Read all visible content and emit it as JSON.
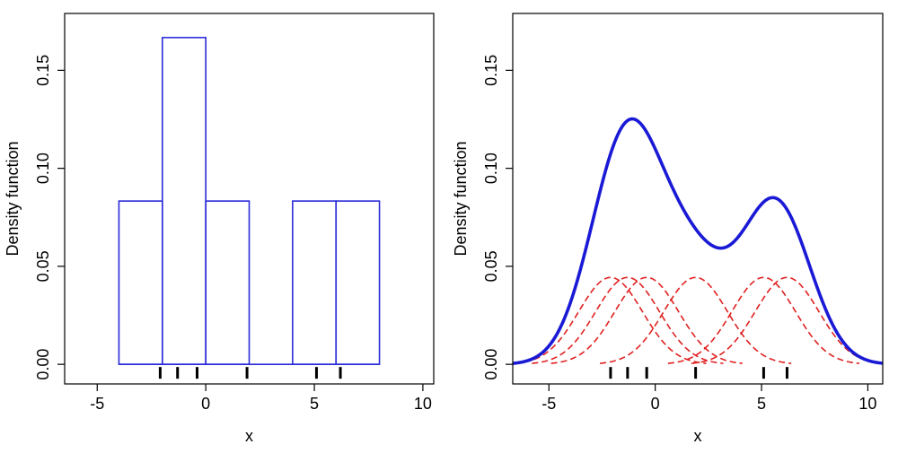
{
  "chart_data": [
    {
      "type": "bar",
      "subtype": "histogram",
      "title": "",
      "xlabel": "x",
      "ylabel": "Density function",
      "xlim": [
        -6.5,
        10.5
      ],
      "ylim": [
        -0.01,
        0.179
      ],
      "xticks": [
        -5,
        0,
        5,
        10
      ],
      "xtick_labels": [
        "-5",
        "0",
        "5",
        "10"
      ],
      "yticks": [
        0.0,
        0.05,
        0.1,
        0.15
      ],
      "ytick_labels": [
        "0.00",
        "0.05",
        "0.10",
        "0.15"
      ],
      "grid": false,
      "bar_color": "#2b2bd9",
      "bins": [
        {
          "from": -4,
          "to": -2,
          "density": 0.0833
        },
        {
          "from": -2,
          "to": 0,
          "density": 0.1667
        },
        {
          "from": 0,
          "to": 2,
          "density": 0.0833
        },
        {
          "from": 2,
          "to": 4,
          "density": 0.0
        },
        {
          "from": 4,
          "to": 6,
          "density": 0.0833
        },
        {
          "from": 6,
          "to": 8,
          "density": 0.0833
        }
      ],
      "rug": [
        -2.1,
        -1.3,
        -0.4,
        1.9,
        5.1,
        6.2
      ]
    },
    {
      "type": "line",
      "subtype": "kernel-density",
      "title": "",
      "xlabel": "x",
      "ylabel": "Density function",
      "xlim": [
        -6.7,
        10.7
      ],
      "ylim": [
        -0.01,
        0.179
      ],
      "xticks": [
        -5,
        0,
        5,
        10
      ],
      "xtick_labels": [
        "-5",
        "0",
        "5",
        "10"
      ],
      "yticks": [
        0.0,
        0.05,
        0.1,
        0.15
      ],
      "ytick_labels": [
        "0.00",
        "0.05",
        "0.10",
        "0.15"
      ],
      "grid": false,
      "kernel": "gaussian",
      "bandwidth": 1.5,
      "points": [
        -2.1,
        -1.3,
        -0.4,
        1.9,
        5.1,
        6.2
      ],
      "total_color": "#1a1ad6",
      "component_color": "#e02020",
      "rug": [
        -2.1,
        -1.3,
        -0.4,
        1.9,
        5.1,
        6.2
      ]
    }
  ]
}
